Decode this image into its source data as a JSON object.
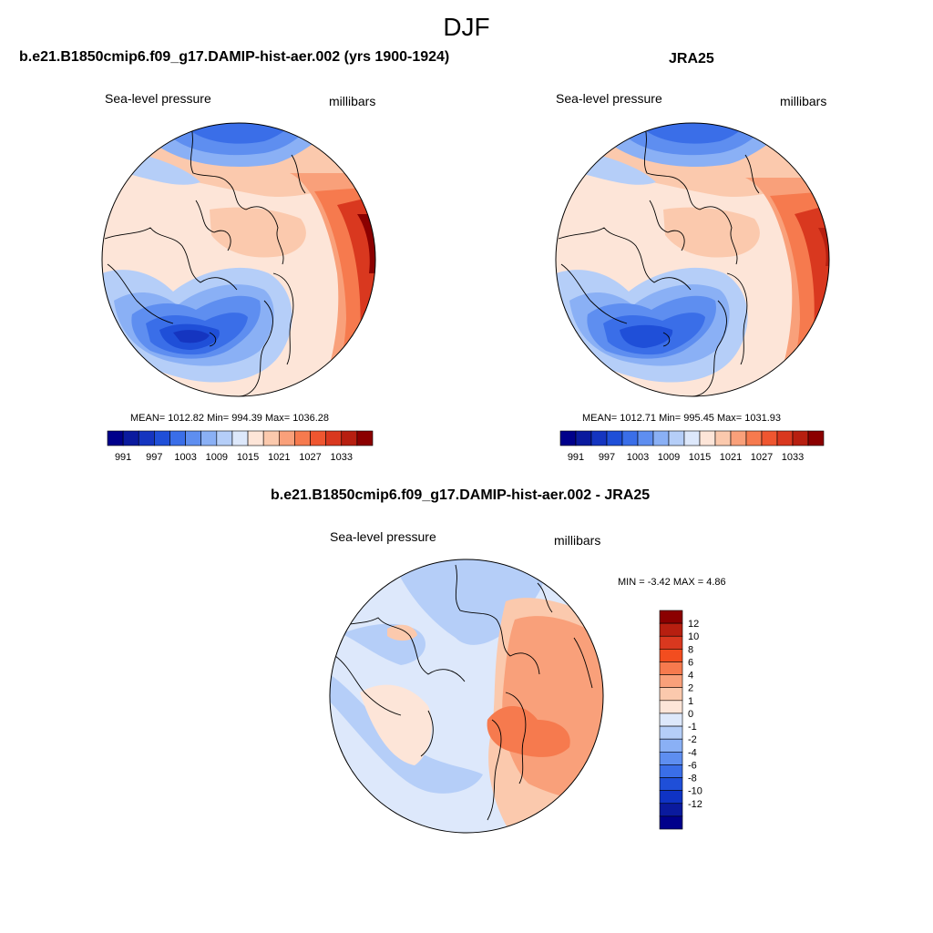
{
  "figure": {
    "title": "DJF",
    "panels": [
      {
        "title": "b.e21.B1850cmip6.f09_g17.DAMIP-hist-aer.002 (yrs 1900-1924)",
        "variable": "Sea-level pressure",
        "units": "millibars",
        "stats": "MEAN= 1012.82  Min= 994.39  Max= 1036.28",
        "mean": 1012.82,
        "min": 994.39,
        "max": 1036.28
      },
      {
        "title": "JRA25",
        "variable": "Sea-level pressure",
        "units": "millibars",
        "stats": "MEAN= 1012.71  Min= 995.45  Max= 1031.93",
        "mean": 1012.71,
        "min": 995.45,
        "max": 1031.93
      },
      {
        "title": "b.e21.B1850cmip6.f09_g17.DAMIP-hist-aer.002 - JRA25",
        "variable": "Sea-level pressure",
        "units": "millibars",
        "stats": "MIN =  -3.42 MAX =   4.86",
        "min": -3.42,
        "max": 4.86
      }
    ],
    "abs_colorbar": {
      "colors": [
        "#00008b",
        "#0a1a9e",
        "#1535c0",
        "#1f4fd8",
        "#3a6ee8",
        "#5e8ef0",
        "#8ab0f5",
        "#b5cef8",
        "#dde8fb",
        "#fde5d8",
        "#fbc9ad",
        "#f9a07a",
        "#f67a4e",
        "#ef5630",
        "#d9381f",
        "#b71f10",
        "#8b0000"
      ],
      "labels": [
        "991",
        "997",
        "1003",
        "1009",
        "1015",
        "1021",
        "1027",
        "1033"
      ]
    },
    "diff_colorbar": {
      "colors_top_to_bottom": [
        "#8b0000",
        "#b71f10",
        "#d9381f",
        "#f24d1f",
        "#f67a4e",
        "#f9a07a",
        "#fbc9ad",
        "#fde5d8",
        "#dde8fb",
        "#b5cef8",
        "#8ab0f5",
        "#5e8ef0",
        "#3a6ee8",
        "#1f4fd8",
        "#0f33c4",
        "#0a1a9e",
        "#00008b"
      ],
      "labels_top_to_bottom": [
        "12",
        "10",
        "8",
        "6",
        "4",
        "2",
        "1",
        "0",
        "-1",
        "-2",
        "-4",
        "-6",
        "-8",
        "-10",
        "-12"
      ]
    }
  }
}
